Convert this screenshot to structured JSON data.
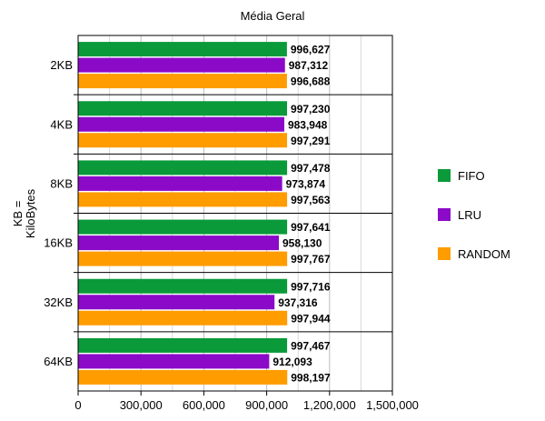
{
  "chart_data": {
    "type": "bar",
    "orientation": "horizontal",
    "title": "Média Geral",
    "ylabel": "KB = KiloBytes",
    "ylabel_lines": [
      "KB =",
      "KiloBytes"
    ],
    "xlabel": "",
    "xlim": [
      0,
      1500000
    ],
    "x_ticks": [
      "0",
      "300,000",
      "600,000",
      "900,000",
      "1,200,000",
      "1,500,000"
    ],
    "x_tick_values": [
      0,
      300000,
      600000,
      900000,
      1200000,
      1500000
    ],
    "grid": "vertical",
    "legend_position": "right",
    "categories": [
      "2KB",
      "4KB",
      "8KB",
      "16KB",
      "32KB",
      "64KB"
    ],
    "series": [
      {
        "name": "FIFO",
        "color": "#0a9a3a",
        "values": [
          996627,
          997230,
          997478,
          997641,
          997716,
          997467
        ],
        "labels": [
          "996,627",
          "997,230",
          "997,478",
          "997,641",
          "997,716",
          "997,467"
        ]
      },
      {
        "name": "LRU",
        "color": "#8b0ac8",
        "values": [
          987312,
          983948,
          973874,
          958130,
          937316,
          912093
        ],
        "labels": [
          "987,312",
          "983,948",
          "973,874",
          "958,130",
          "937,316",
          "912,093"
        ]
      },
      {
        "name": "RANDOM",
        "color": "#ff9c00",
        "values": [
          996688,
          997291,
          997563,
          997767,
          997944,
          998197
        ],
        "labels": [
          "996,688",
          "997,291",
          "997,563",
          "997,767",
          "997,944",
          "998,197"
        ]
      }
    ]
  }
}
